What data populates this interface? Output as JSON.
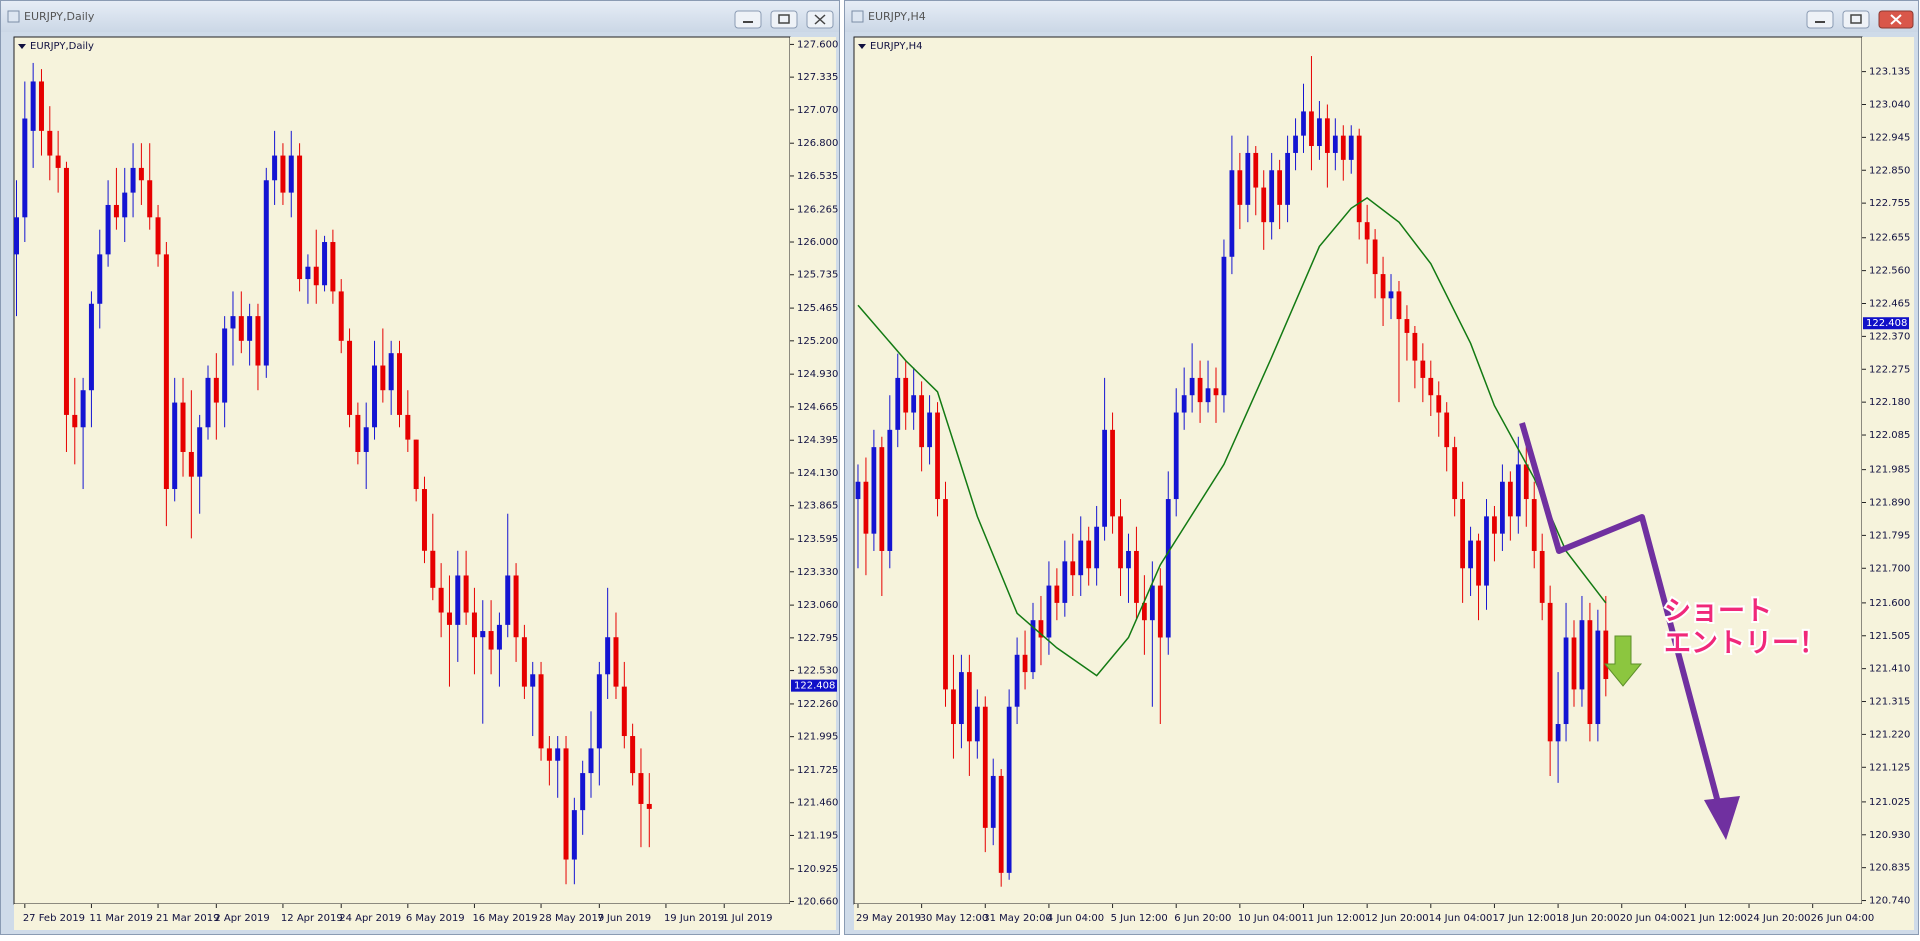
{
  "chart_data": [
    {
      "type": "candlestick",
      "window_title": "EURJPY,Daily",
      "title": "EURJPY,Daily",
      "up_color": "#1414d2",
      "down_color": "#e60000",
      "background": "#f6f3dc",
      "xlim": [
        -0.3,
        92.9
      ],
      "ylim": [
        120.64,
        127.66
      ],
      "xticks": [
        {
          "value": 1,
          "label": "27 Feb 2019"
        },
        {
          "value": 9,
          "label": "11 Mar 2019"
        },
        {
          "value": 17,
          "label": "21 Mar 2019"
        },
        {
          "value": 24,
          "label": "2 Apr 2019"
        },
        {
          "value": 32,
          "label": "12 Apr 2019"
        },
        {
          "value": 39,
          "label": "24 Apr 2019"
        },
        {
          "value": 47,
          "label": "6 May 2019"
        },
        {
          "value": 55,
          "label": "16 May 2019"
        },
        {
          "value": 63,
          "label": "28 May 2019"
        },
        {
          "value": 70,
          "label": "7 Jun 2019"
        },
        {
          "value": 78,
          "label": "19 Jun 2019"
        },
        {
          "value": 85,
          "label": "1 Jul 2019"
        }
      ],
      "yticks": [
        {
          "value": 127.6,
          "label": "127.600"
        },
        {
          "value": 127.335,
          "label": "127.335"
        },
        {
          "value": 127.07,
          "label": "127.070"
        },
        {
          "value": 126.8,
          "label": "126.800"
        },
        {
          "value": 126.535,
          "label": "126.535"
        },
        {
          "value": 126.265,
          "label": "126.265"
        },
        {
          "value": 126.0,
          "label": "126.000"
        },
        {
          "value": 125.735,
          "label": "125.735"
        },
        {
          "value": 125.465,
          "label": "125.465"
        },
        {
          "value": 125.2,
          "label": "125.200"
        },
        {
          "value": 124.93,
          "label": "124.930"
        },
        {
          "value": 124.665,
          "label": "124.665"
        },
        {
          "value": 124.395,
          "label": "124.395"
        },
        {
          "value": 124.13,
          "label": "124.130"
        },
        {
          "value": 123.865,
          "label": "123.865"
        },
        {
          "value": 123.595,
          "label": "123.595"
        },
        {
          "value": 123.33,
          "label": "123.330"
        },
        {
          "value": 123.06,
          "label": "123.060"
        },
        {
          "value": 122.795,
          "label": "122.795"
        },
        {
          "value": 122.53,
          "label": "122.530"
        },
        {
          "value": 122.26,
          "label": "122.260"
        },
        {
          "value": 121.995,
          "label": "121.995"
        },
        {
          "value": 121.725,
          "label": "121.725"
        },
        {
          "value": 121.46,
          "label": "121.460"
        },
        {
          "value": 121.195,
          "label": "121.195"
        },
        {
          "value": 120.925,
          "label": "120.925"
        },
        {
          "value": 120.66,
          "label": "120.660"
        }
      ],
      "last_price": {
        "value": 122.408,
        "label": "122.408"
      },
      "open": [
        125.9,
        126.2,
        126.9,
        127.3,
        126.9,
        126.7,
        126.6,
        124.6,
        124.5,
        124.8,
        125.5,
        125.9,
        126.3,
        126.2,
        126.4,
        126.6,
        126.5,
        126.2,
        125.9,
        124.0,
        124.7,
        124.3,
        124.1,
        124.5,
        124.9,
        124.7,
        125.3,
        125.4,
        125.2,
        125.4,
        125.0,
        126.5,
        126.7,
        126.4,
        126.7,
        125.7,
        125.8,
        125.65,
        126.0,
        125.6,
        125.2,
        124.6,
        124.3,
        124.5,
        125.0,
        124.8,
        125.1,
        124.6,
        124.4,
        124.0,
        123.5,
        123.2,
        123.0,
        122.9,
        123.3,
        123.0,
        122.8,
        122.85,
        122.7,
        122.9,
        123.3,
        122.8,
        122.4,
        122.5,
        121.9,
        121.8,
        121.9,
        121.0,
        121.4,
        121.7,
        121.9,
        122.5,
        122.8,
        122.4,
        122.0,
        121.7,
        121.45
      ],
      "high": [
        126.5,
        127.3,
        127.45,
        127.4,
        127.1,
        126.9,
        126.65,
        124.9,
        124.9,
        125.6,
        126.1,
        126.5,
        126.6,
        126.6,
        126.8,
        126.8,
        126.8,
        126.3,
        126.0,
        124.9,
        124.9,
        124.8,
        124.6,
        125.0,
        125.1,
        125.4,
        125.6,
        125.6,
        125.5,
        125.5,
        126.6,
        126.9,
        126.8,
        126.9,
        126.8,
        125.9,
        126.1,
        126.05,
        126.1,
        125.7,
        125.3,
        124.7,
        124.7,
        125.2,
        125.3,
        125.2,
        125.2,
        124.8,
        124.4,
        124.1,
        123.8,
        123.4,
        123.3,
        123.5,
        123.5,
        123.2,
        123.1,
        123.1,
        123.0,
        123.8,
        123.4,
        122.9,
        122.6,
        122.6,
        122.0,
        122.0,
        122.0,
        121.5,
        121.8,
        122.2,
        122.6,
        123.2,
        123.0,
        122.6,
        122.1,
        121.9,
        121.7
      ],
      "low": [
        125.4,
        126.0,
        126.6,
        126.7,
        126.5,
        126.4,
        124.3,
        124.2,
        124.0,
        124.5,
        125.3,
        125.8,
        126.1,
        126.0,
        126.2,
        126.3,
        126.1,
        125.8,
        123.7,
        123.9,
        124.1,
        123.6,
        123.8,
        124.4,
        124.4,
        124.5,
        125.0,
        125.1,
        125.0,
        124.8,
        124.9,
        126.3,
        126.3,
        126.2,
        125.6,
        125.5,
        125.5,
        125.6,
        125.5,
        125.1,
        124.5,
        124.2,
        124.0,
        124.4,
        124.7,
        124.6,
        124.5,
        124.3,
        123.9,
        123.4,
        123.1,
        122.8,
        122.4,
        122.6,
        122.9,
        122.5,
        122.1,
        122.5,
        122.4,
        122.8,
        122.6,
        122.3,
        122.0,
        121.8,
        121.6,
        121.5,
        120.8,
        120.8,
        121.2,
        121.5,
        121.6,
        122.3,
        122.3,
        121.9,
        121.6,
        121.1,
        121.1
      ],
      "close": [
        126.2,
        127.0,
        127.3,
        126.9,
        126.7,
        126.6,
        124.6,
        124.5,
        124.8,
        125.5,
        125.9,
        126.3,
        126.2,
        126.4,
        126.6,
        126.5,
        126.2,
        125.9,
        124.0,
        124.7,
        124.3,
        124.1,
        124.5,
        124.9,
        124.7,
        125.3,
        125.4,
        125.2,
        125.4,
        125.0,
        126.5,
        126.7,
        126.4,
        126.7,
        125.7,
        125.8,
        125.65,
        126.0,
        125.6,
        125.2,
        124.6,
        124.3,
        124.5,
        125.0,
        124.8,
        125.1,
        124.6,
        124.4,
        124.0,
        123.5,
        123.2,
        123.0,
        122.9,
        123.3,
        123.0,
        122.8,
        122.85,
        122.7,
        122.9,
        123.3,
        122.8,
        122.4,
        122.5,
        121.9,
        121.8,
        121.9,
        121.0,
        121.4,
        121.7,
        121.9,
        122.5,
        122.8,
        122.4,
        122.0,
        121.7,
        121.45,
        121.41
      ]
    },
    {
      "type": "candlestick",
      "window_title": "EURJPY,H4",
      "title": "EURJPY,H4",
      "up_color": "#1414d2",
      "down_color": "#e60000",
      "background": "#f6f3dc",
      "xlim": [
        -0.5,
        126.2
      ],
      "ylim": [
        120.73,
        123.235
      ],
      "xticks": [
        {
          "value": 0,
          "label": "29 May 2019"
        },
        {
          "value": 8,
          "label": "30 May 12:00"
        },
        {
          "value": 16,
          "label": "31 May 20:00"
        },
        {
          "value": 24,
          "label": "4 Jun 04:00"
        },
        {
          "value": 32,
          "label": "5 Jun 12:00"
        },
        {
          "value": 40,
          "label": "6 Jun 20:00"
        },
        {
          "value": 48,
          "label": "10 Jun 04:00"
        },
        {
          "value": 56,
          "label": "11 Jun 12:00"
        },
        {
          "value": 64,
          "label": "12 Jun 20:00"
        },
        {
          "value": 72,
          "label": "14 Jun 04:00"
        },
        {
          "value": 80,
          "label": "17 Jun 12:00"
        },
        {
          "value": 88,
          "label": "18 Jun 20:00"
        },
        {
          "value": 96,
          "label": "20 Jun 04:00"
        },
        {
          "value": 104,
          "label": "21 Jun 12:00"
        },
        {
          "value": 112,
          "label": "24 Jun 20:00"
        },
        {
          "value": 120,
          "label": "26 Jun 04:00"
        }
      ],
      "yticks": [
        {
          "value": 123.135,
          "label": "123.135"
        },
        {
          "value": 123.04,
          "label": "123.040"
        },
        {
          "value": 122.945,
          "label": "122.945"
        },
        {
          "value": 122.85,
          "label": "122.850"
        },
        {
          "value": 122.755,
          "label": "122.755"
        },
        {
          "value": 122.655,
          "label": "122.655"
        },
        {
          "value": 122.56,
          "label": "122.560"
        },
        {
          "value": 122.465,
          "label": "122.465"
        },
        {
          "value": 122.37,
          "label": "122.370"
        },
        {
          "value": 122.275,
          "label": "122.275"
        },
        {
          "value": 122.18,
          "label": "122.180"
        },
        {
          "value": 122.085,
          "label": "122.085"
        },
        {
          "value": 121.985,
          "label": "121.985"
        },
        {
          "value": 121.89,
          "label": "121.890"
        },
        {
          "value": 121.795,
          "label": "121.795"
        },
        {
          "value": 121.7,
          "label": "121.700"
        },
        {
          "value": 121.6,
          "label": "121.600"
        },
        {
          "value": 121.505,
          "label": "121.505"
        },
        {
          "value": 121.41,
          "label": "121.410"
        },
        {
          "value": 121.315,
          "label": "121.315"
        },
        {
          "value": 121.22,
          "label": "121.220"
        },
        {
          "value": 121.125,
          "label": "121.125"
        },
        {
          "value": 121.025,
          "label": "121.025"
        },
        {
          "value": 120.93,
          "label": "120.930"
        },
        {
          "value": 120.835,
          "label": "120.835"
        },
        {
          "value": 120.74,
          "label": "120.740"
        }
      ],
      "last_price": {
        "value": 122.408,
        "label": "122.408"
      },
      "open": [
        121.9,
        121.95,
        121.8,
        122.05,
        121.75,
        122.1,
        122.25,
        122.15,
        122.2,
        122.05,
        122.15,
        121.9,
        121.35,
        121.25,
        121.4,
        121.2,
        121.3,
        120.95,
        121.1,
        120.82,
        121.3,
        121.45,
        121.4,
        121.55,
        121.5,
        121.65,
        121.6,
        121.72,
        121.68,
        121.78,
        121.7,
        121.82,
        122.1,
        121.85,
        121.7,
        121.75,
        121.6,
        121.55,
        121.65,
        121.5,
        121.9,
        122.15,
        122.2,
        122.25,
        122.18,
        122.22,
        122.2,
        122.6,
        122.85,
        122.75,
        122.9,
        122.8,
        122.7,
        122.85,
        122.75,
        122.9,
        122.95,
        123.02,
        122.92,
        123.0,
        122.9,
        122.95,
        122.88,
        122.95,
        122.7,
        122.65,
        122.55,
        122.48,
        122.5,
        122.42,
        122.38,
        122.3,
        122.25,
        122.2,
        122.15,
        122.05,
        121.9,
        121.7,
        121.78,
        121.65,
        121.85,
        121.8,
        121.95,
        121.85,
        122.0,
        121.9,
        121.75,
        121.6,
        121.2,
        121.25,
        121.5,
        121.35,
        121.55,
        121.25,
        121.52
      ],
      "high": [
        122.0,
        122.02,
        122.1,
        122.08,
        122.2,
        122.32,
        122.3,
        122.28,
        122.24,
        122.2,
        122.18,
        121.95,
        121.45,
        121.45,
        121.45,
        121.35,
        121.33,
        121.15,
        121.12,
        121.35,
        121.5,
        121.52,
        121.6,
        121.62,
        121.72,
        121.7,
        121.78,
        121.8,
        121.85,
        121.82,
        121.88,
        122.25,
        122.15,
        121.9,
        121.8,
        121.82,
        121.68,
        121.72,
        121.7,
        121.98,
        122.22,
        122.28,
        122.35,
        122.3,
        122.3,
        122.28,
        122.65,
        122.95,
        122.9,
        122.95,
        122.92,
        122.85,
        122.9,
        122.88,
        122.95,
        123.0,
        123.1,
        123.18,
        123.05,
        123.04,
        123.0,
        122.98,
        122.98,
        122.97,
        122.75,
        122.68,
        122.6,
        122.55,
        122.53,
        122.46,
        122.4,
        122.35,
        122.3,
        122.24,
        122.18,
        122.08,
        121.95,
        121.82,
        121.8,
        121.9,
        121.88,
        122.0,
        121.98,
        122.08,
        122.05,
        121.95,
        121.8,
        121.65,
        121.4,
        121.6,
        121.55,
        121.62,
        121.6,
        121.58,
        121.62
      ],
      "low": [
        121.7,
        121.68,
        121.75,
        121.62,
        121.7,
        122.05,
        122.1,
        122.1,
        121.98,
        122.0,
        121.85,
        121.3,
        121.15,
        121.18,
        121.1,
        121.15,
        120.88,
        120.9,
        120.78,
        120.8,
        121.25,
        121.35,
        121.38,
        121.42,
        121.45,
        121.55,
        121.56,
        121.62,
        121.62,
        121.65,
        121.65,
        121.78,
        121.8,
        121.62,
        121.6,
        121.55,
        121.45,
        121.3,
        121.25,
        121.45,
        121.85,
        122.1,
        122.15,
        122.12,
        122.15,
        122.12,
        122.15,
        122.55,
        122.68,
        122.7,
        122.72,
        122.62,
        122.65,
        122.68,
        122.7,
        122.85,
        122.9,
        122.85,
        122.88,
        122.8,
        122.85,
        122.82,
        122.84,
        122.65,
        122.58,
        122.48,
        122.4,
        122.42,
        122.18,
        122.3,
        122.22,
        122.18,
        122.14,
        122.08,
        121.98,
        121.85,
        121.6,
        121.62,
        121.55,
        121.58,
        121.72,
        121.75,
        121.78,
        121.8,
        121.82,
        121.7,
        121.55,
        121.1,
        121.08,
        121.2,
        121.3,
        121.3,
        121.2,
        121.2,
        121.33
      ],
      "close": [
        121.95,
        121.8,
        122.05,
        121.75,
        122.1,
        122.25,
        122.15,
        122.2,
        122.05,
        122.15,
        121.9,
        121.35,
        121.25,
        121.4,
        121.2,
        121.3,
        120.95,
        121.1,
        120.82,
        121.3,
        121.45,
        121.4,
        121.55,
        121.5,
        121.65,
        121.6,
        121.72,
        121.68,
        121.78,
        121.7,
        121.82,
        122.1,
        121.85,
        121.7,
        121.75,
        121.6,
        121.55,
        121.65,
        121.5,
        121.9,
        122.15,
        122.2,
        122.25,
        122.18,
        122.22,
        122.2,
        122.6,
        122.85,
        122.75,
        122.9,
        122.8,
        122.7,
        122.85,
        122.75,
        122.9,
        122.95,
        123.02,
        122.92,
        123.0,
        122.9,
        122.95,
        122.88,
        122.95,
        122.7,
        122.65,
        122.55,
        122.48,
        122.5,
        122.42,
        122.38,
        122.3,
        122.25,
        122.2,
        122.15,
        122.05,
        121.9,
        121.7,
        121.78,
        121.65,
        121.85,
        121.8,
        121.95,
        121.85,
        122.0,
        121.9,
        121.75,
        121.6,
        121.2,
        121.25,
        121.5,
        121.35,
        121.55,
        121.25,
        121.52,
        121.38
      ],
      "ma": {
        "color": "#137a13",
        "x": [
          0,
          6,
          10,
          15,
          20,
          25,
          30,
          34,
          38,
          46,
          52,
          58,
          62,
          64,
          68,
          72,
          77,
          80,
          85,
          89,
          94
        ],
        "values": [
          122.46,
          122.3,
          122.21,
          121.85,
          121.57,
          121.47,
          121.39,
          121.5,
          121.71,
          122.0,
          122.31,
          122.63,
          122.74,
          122.77,
          122.7,
          122.58,
          122.35,
          122.17,
          121.96,
          121.75,
          121.6
        ]
      },
      "annotation": [
        "ショート",
        "エントリー！"
      ]
    }
  ]
}
